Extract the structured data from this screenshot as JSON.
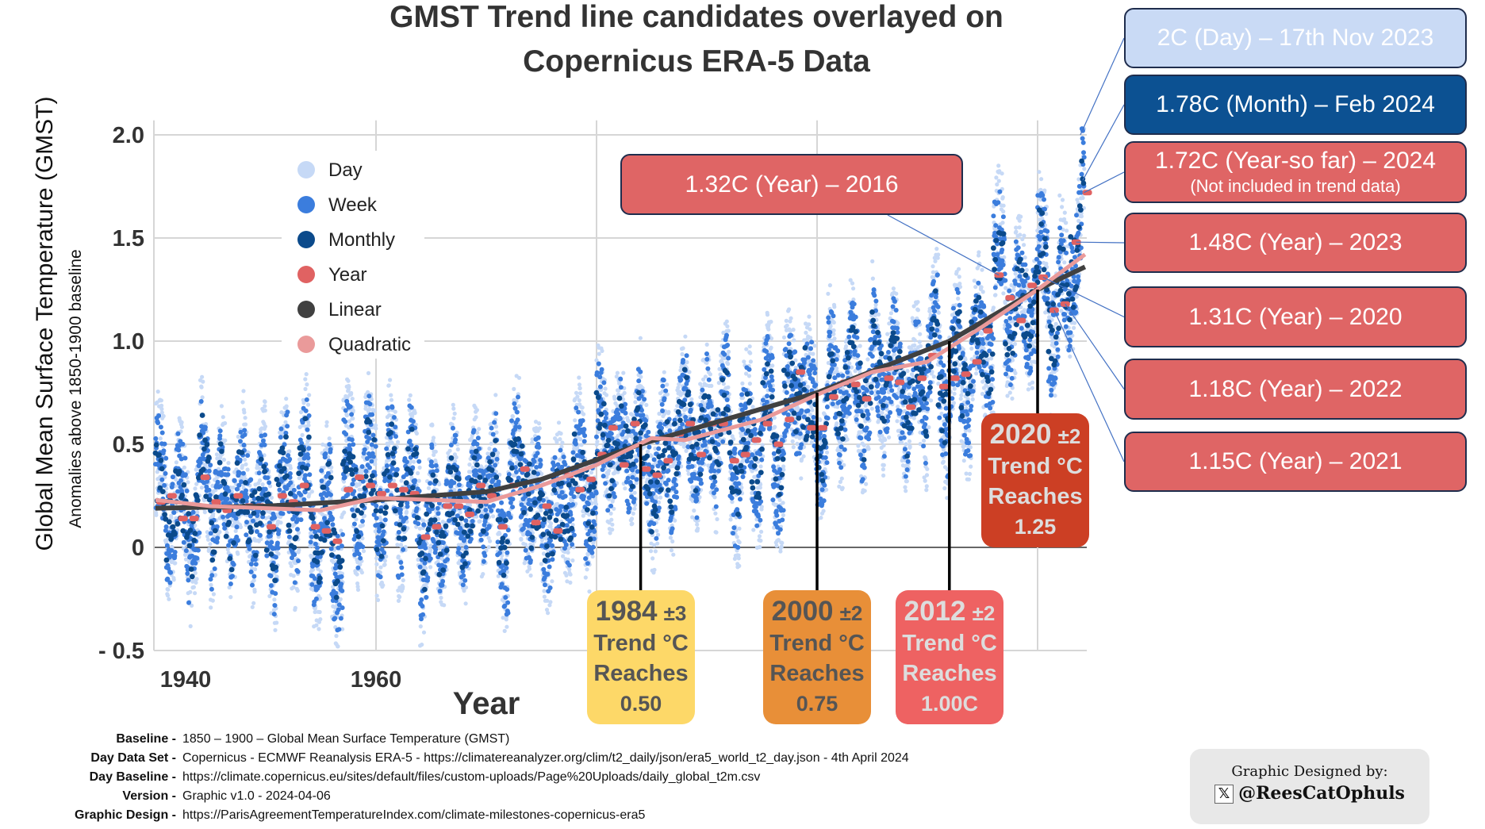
{
  "title": {
    "line1": "GMST Trend line candidates overlayed on",
    "line2": "Copernicus ERA-5 Data"
  },
  "chart_data": {
    "type": "scatter",
    "title": "GMST Trend line candidates overlayed on Copernicus ERA-5 Data",
    "xlabel": "Year",
    "ylabel": "Global Mean Surface Temperature (GMST)",
    "ylabel2": "Anomalies above 1850-1900 baseline",
    "xlim": [
      1940,
      2024.5
    ],
    "ylim": [
      -0.5,
      2.07
    ],
    "x_ticks": [
      "1940",
      "1960"
    ],
    "x_tick_values": [
      1940,
      1960
    ],
    "x_gridlines": [
      1960,
      1980,
      2000,
      2020
    ],
    "y_ticks": [
      {
        "value": 2.0,
        "label": "2.0"
      },
      {
        "value": 1.5,
        "label": "1.5"
      },
      {
        "value": 1.0,
        "label": "1.0"
      },
      {
        "value": 0.5,
        "label": "0.5"
      },
      {
        "value": 0,
        "label": "0"
      },
      {
        "value": -0.5,
        "label": "- 0.5"
      }
    ],
    "grid": true,
    "legend_position": "top-left",
    "legend": [
      {
        "name": "Day",
        "color": "#c6d9f6"
      },
      {
        "name": "Week",
        "color": "#3b7ddd"
      },
      {
        "name": "Monthly",
        "color": "#0b4a8b"
      },
      {
        "name": "Year",
        "color": "#e06262"
      },
      {
        "name": "Linear",
        "color": "#404040"
      },
      {
        "name": "Quadratic",
        "color": "#ea9a9a"
      }
    ],
    "year_values": {
      "x": [
        1940,
        1941,
        1942,
        1943,
        1944,
        1945,
        1946,
        1947,
        1948,
        1949,
        1950,
        1951,
        1952,
        1953,
        1954,
        1955,
        1956,
        1957,
        1958,
        1959,
        1960,
        1961,
        1962,
        1963,
        1964,
        1965,
        1966,
        1967,
        1968,
        1969,
        1970,
        1971,
        1972,
        1973,
        1974,
        1975,
        1976,
        1977,
        1978,
        1979,
        1980,
        1981,
        1982,
        1983,
        1984,
        1985,
        1986,
        1987,
        1988,
        1989,
        1990,
        1991,
        1992,
        1993,
        1994,
        1995,
        1996,
        1997,
        1998,
        1999,
        2000,
        2001,
        2002,
        2003,
        2004,
        2005,
        2006,
        2007,
        2008,
        2009,
        2010,
        2011,
        2012,
        2013,
        2014,
        2015,
        2016,
        2017,
        2018,
        2019,
        2020,
        2021,
        2022,
        2023,
        2024
      ],
      "y": [
        0.22,
        0.25,
        0.14,
        0.14,
        0.34,
        0.22,
        0.18,
        0.25,
        0.2,
        0.2,
        0.1,
        0.25,
        0.22,
        0.3,
        0.1,
        0.08,
        0.03,
        0.28,
        0.34,
        0.3,
        0.26,
        0.3,
        0.28,
        0.26,
        0.05,
        0.1,
        0.2,
        0.2,
        0.16,
        0.3,
        0.25,
        0.1,
        0.3,
        0.38,
        0.12,
        0.2,
        0.08,
        0.35,
        0.28,
        0.33,
        0.45,
        0.58,
        0.4,
        0.6,
        0.38,
        0.35,
        0.42,
        0.55,
        0.6,
        0.45,
        0.6,
        0.6,
        0.42,
        0.45,
        0.52,
        0.6,
        0.5,
        0.62,
        0.85,
        0.58,
        0.58,
        0.73,
        0.8,
        0.79,
        0.72,
        0.86,
        0.82,
        0.8,
        0.68,
        0.82,
        0.93,
        0.78,
        0.82,
        0.84,
        0.9,
        1.05,
        1.32,
        1.21,
        1.1,
        1.27,
        1.31,
        1.15,
        1.18,
        1.48,
        1.72
      ]
    },
    "linear": {
      "x": [
        1940,
        1950,
        1960,
        1970,
        1975,
        1984,
        2000,
        2012,
        2020,
        2024.3
      ],
      "y": [
        0.19,
        0.2,
        0.23,
        0.27,
        0.33,
        0.5,
        0.75,
        1.0,
        1.25,
        1.36
      ]
    },
    "quadratic": {
      "x": [
        1940,
        1945,
        1955,
        1960,
        1970,
        1975,
        1980,
        1985,
        1988,
        1995,
        2000,
        2005,
        2010,
        2015,
        2020,
        2024.3
      ],
      "y": [
        0.23,
        0.2,
        0.18,
        0.24,
        0.22,
        0.3,
        0.4,
        0.53,
        0.52,
        0.62,
        0.74,
        0.85,
        0.9,
        1.07,
        1.25,
        1.42
      ]
    },
    "annotations": [
      {
        "text": "2C (Day) – 17th Nov 2023",
        "x": 2023.88,
        "y": 2.0,
        "bg": "#c9daf5",
        "fg": "#ffffff"
      },
      {
        "text": "1.78C (Month) – Feb 2024",
        "x": 2024.1,
        "y": 1.78,
        "bg": "#0c5192",
        "fg": "#ffffff"
      },
      {
        "text": "1.72C (Year-so far) – 2024",
        "sub": "(Not included in trend data)",
        "x": 2024.2,
        "y": 1.72,
        "bg": "#df6565",
        "fg": "#ffffff"
      },
      {
        "text": "1.48C (Year) – 2023",
        "x": 2023.5,
        "y": 1.48,
        "bg": "#df6565",
        "fg": "#ffffff"
      },
      {
        "text": "1.31C (Year) – 2020",
        "x": 2020.5,
        "y": 1.31,
        "bg": "#df6565",
        "fg": "#ffffff"
      },
      {
        "text": "1.18C (Year) – 2022",
        "x": 2022.5,
        "y": 1.18,
        "bg": "#df6565",
        "fg": "#ffffff"
      },
      {
        "text": "1.15C (Year) – 2021",
        "x": 2021.5,
        "y": 1.15,
        "bg": "#df6565",
        "fg": "#ffffff"
      },
      {
        "text": "1.32C (Year) – 2016",
        "x": 2016.5,
        "y": 1.32,
        "bg": "#df6565",
        "fg": "#ffffff"
      }
    ],
    "trend_milestones": [
      {
        "year": "1984",
        "pm": "±3",
        "line2": "Trend °C",
        "line3": "Reaches",
        "value": "0.50",
        "x": 1984,
        "y": 0.5,
        "bg": "#fdd868",
        "fg": "#555555"
      },
      {
        "year": "2000",
        "pm": "±2",
        "line2": "Trend °C",
        "line3": "Reaches",
        "value": "0.75",
        "x": 2000,
        "y": 0.75,
        "bg": "#e88f38",
        "fg": "#555555"
      },
      {
        "year": "2012",
        "pm": "±2",
        "line2": "Trend °C",
        "line3": "Reaches",
        "value": "1.00C",
        "x": 2012,
        "y": 1.0,
        "bg": "#ee6262",
        "fg": "#dddddd"
      },
      {
        "year": "2020",
        "pm": "±2",
        "line2": "Trend °C",
        "line3": "Reaches",
        "value": "1.25",
        "x": 2020,
        "y": 1.25,
        "bg": "#cc3f24",
        "fg": "#dddddd"
      }
    ]
  },
  "footer": [
    {
      "label": "Baseline -",
      "value": "1850 – 1900 – Global Mean Surface Temperature (GMST)"
    },
    {
      "label": "Day Data Set -",
      "value": "Copernicus - ECMWF Reanalysis ERA-5 - https://climatereanalyzer.org/clim/t2_daily/json/era5_world_t2_day.json - 4th April 2024"
    },
    {
      "label": "Day Baseline -",
      "value": "https://climate.copernicus.eu/sites/default/files/custom-uploads/Page%20Uploads/daily_global_t2m.csv"
    },
    {
      "label": "Version -",
      "value": "Graphic v1.0 - 2024-04-06"
    },
    {
      "label": "Graphic Design -",
      "value": "https://ParisAgreementTemperatureIndex.com/climate-milestones-copernicus-era5"
    }
  ],
  "credit": {
    "line1": "Graphic Designed by:",
    "handle": "@ReesCatOphuls",
    "icon": "x-logo-icon",
    "icon_glyph": "𝕏"
  }
}
